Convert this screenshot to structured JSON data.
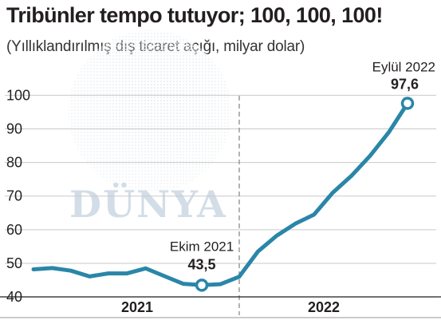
{
  "chart_data": {
    "type": "line",
    "title": "Tribünler tempo tutuyor; 100, 100, 100!",
    "subtitle": "(Yıllıklandırılmış dış ticaret açığı, milyar dolar)",
    "xlabel": "",
    "ylabel": "",
    "ylim": [
      38,
      104
    ],
    "yticks": [
      40,
      50,
      60,
      70,
      80,
      90,
      100
    ],
    "year_labels": [
      "2021",
      "2022"
    ],
    "grid": true,
    "colors": {
      "line": "#2a86a8",
      "grid": "#c9c9c9",
      "divider": "#8a8a8a",
      "axis": "#231f20"
    },
    "series": [
      {
        "values": [
          48.2,
          48.6,
          47.8,
          46.1,
          47.0,
          47.0,
          48.5,
          46.2,
          43.9,
          43.5,
          43.8,
          46.0,
          53.5,
          58.2,
          61.8,
          64.5,
          71.0,
          76.0,
          82.0,
          89.0,
          97.6
        ]
      }
    ],
    "annotations": [
      {
        "label": "Ekim 2021",
        "value": "43,5"
      },
      {
        "label": "Eylül 2022",
        "value": "97,6"
      }
    ],
    "watermark": "DÜNYA"
  }
}
